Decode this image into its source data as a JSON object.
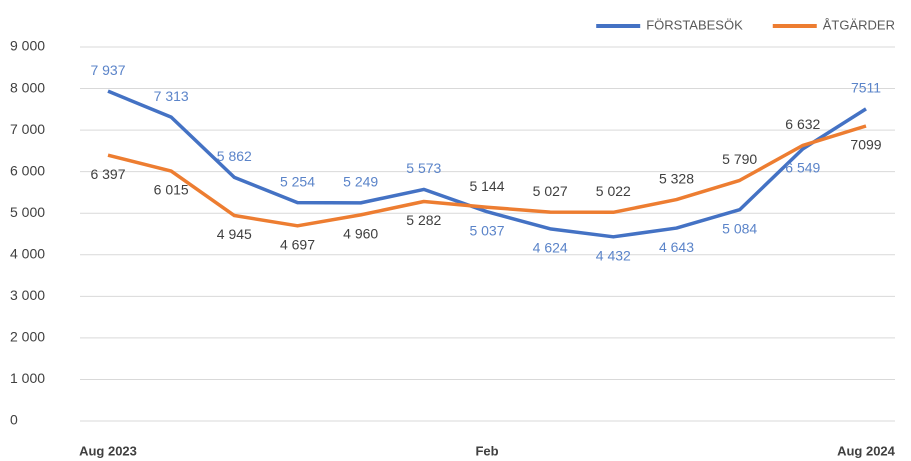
{
  "chart_data": {
    "type": "line",
    "categories": [
      "Aug 2023",
      null,
      null,
      null,
      null,
      null,
      "Feb",
      null,
      null,
      null,
      null,
      null,
      "Aug 2024"
    ],
    "series": [
      {
        "name": "FÖRSTABESÖK",
        "color": "#4472c4",
        "values": [
          7937,
          7313,
          5862,
          5254,
          5249,
          5573,
          5037,
          4624,
          4432,
          4643,
          5084,
          6549,
          7511
        ],
        "value_labels": [
          "7 937",
          "7 313",
          "5 862",
          "5 254",
          "5 249",
          "5 573",
          "5 037",
          "4 624",
          "4 432",
          "4 643",
          "5 084",
          "6 549",
          "7511"
        ]
      },
      {
        "name": "ÅTGÄRDER",
        "color": "#ed7d31",
        "values": [
          6397,
          6015,
          4945,
          4697,
          4960,
          5282,
          5144,
          5027,
          5022,
          5328,
          5790,
          6632,
          7099
        ],
        "value_labels": [
          "6 397",
          "6 015",
          "4 945",
          "4 697",
          "4 960",
          "5 282",
          "5 144",
          "5 027",
          "5 022",
          "5 328",
          "5 790",
          "6 632",
          "7099"
        ]
      }
    ],
    "ylim": [
      0,
      9000
    ],
    "yticks": [
      0,
      {
        "value": 1000,
        "label": "1 000"
      },
      {
        "value": 2000,
        "label": "2 000"
      },
      {
        "value": 3000,
        "label": "3 000"
      },
      {
        "value": 4000,
        "label": "4 000"
      },
      {
        "value": 5000,
        "label": "5 000"
      },
      {
        "value": 6000,
        "label": "6 000"
      },
      {
        "value": 7000,
        "label": "7 000"
      },
      {
        "value": 8000,
        "label": "8 000"
      },
      {
        "value": 9000,
        "label": "9 000"
      }
    ],
    "grid": true,
    "legend": "top-right"
  }
}
